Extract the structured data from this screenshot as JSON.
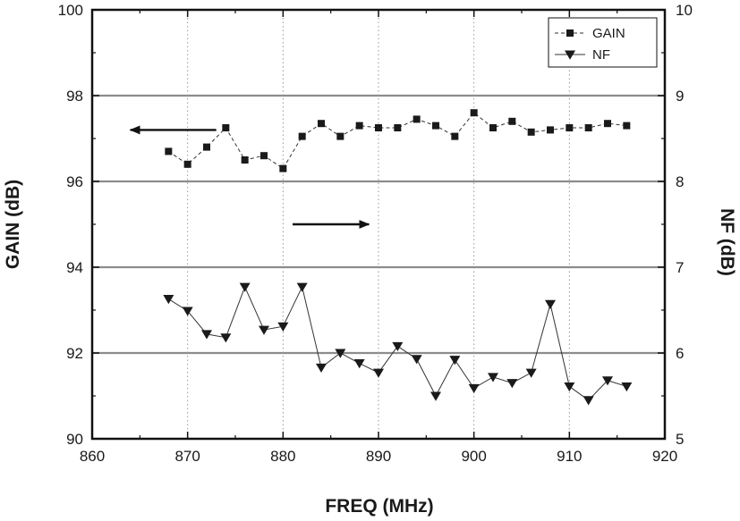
{
  "chart_data": {
    "type": "line",
    "xlabel": "FREQ (MHz)",
    "ylabel_left": "GAIN (dB)",
    "ylabel_right": "NF (dB)",
    "xlim": [
      860,
      920
    ],
    "ylim_left": [
      90,
      100
    ],
    "ylim_right": [
      5,
      10
    ],
    "x_ticks": [
      860,
      870,
      880,
      890,
      900,
      910,
      920
    ],
    "y_ticks_left": [
      90,
      92,
      94,
      96,
      98,
      100
    ],
    "y_ticks_right": [
      5,
      6,
      7,
      8,
      9,
      10
    ],
    "grid": {
      "horizontal": true,
      "vertical_dotted": true
    },
    "legend_position": "top-right",
    "series": [
      {
        "name": "GAIN",
        "axis": "left",
        "marker": "square",
        "line_style": "dashed",
        "color": "#1a1a1a",
        "x": [
          868,
          870,
          872,
          874,
          876,
          878,
          880,
          882,
          884,
          886,
          888,
          890,
          892,
          894,
          896,
          898,
          900,
          902,
          904,
          906,
          908,
          910,
          912,
          914,
          916
        ],
        "values": [
          96.7,
          96.4,
          96.8,
          97.25,
          96.5,
          96.6,
          96.3,
          97.05,
          97.35,
          97.05,
          97.3,
          97.25,
          97.25,
          97.45,
          97.3,
          97.05,
          97.6,
          97.25,
          97.4,
          97.15,
          97.2,
          97.25,
          97.25,
          97.35,
          97.3
        ]
      },
      {
        "name": "NF",
        "axis": "right",
        "marker": "triangle-down",
        "line_style": "solid",
        "color": "#1a1a1a",
        "x": [
          868,
          870,
          872,
          874,
          876,
          878,
          880,
          882,
          884,
          886,
          888,
          890,
          892,
          894,
          896,
          898,
          900,
          902,
          904,
          906,
          908,
          910,
          912,
          914,
          916
        ],
        "values": [
          6.63,
          6.49,
          6.22,
          6.18,
          6.77,
          6.27,
          6.31,
          6.77,
          5.83,
          6.0,
          5.88,
          5.77,
          6.08,
          5.93,
          5.5,
          5.92,
          5.59,
          5.72,
          5.65,
          5.77,
          6.57,
          5.61,
          5.45,
          5.68,
          5.61
        ]
      }
    ],
    "annotations": [
      {
        "type": "arrow",
        "direction": "left",
        "points_to_axis": "left",
        "y": 97.2,
        "x_from": 873,
        "x_to": 864
      },
      {
        "type": "arrow",
        "direction": "right",
        "points_to_axis": "right",
        "y": 7.5,
        "x_from": 881,
        "x_to": 889
      }
    ]
  }
}
